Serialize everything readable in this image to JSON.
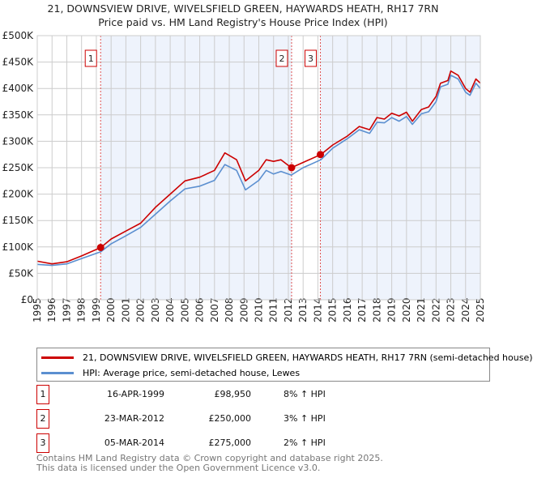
{
  "title": "21, DOWNSVIEW DRIVE, WIVELSFIELD GREEN, HAYWARDS HEATH, RH17 7RN",
  "subtitle": "Price paid vs. HM Land Registry's House Price Index (HPI)",
  "chart_data": {
    "type": "line",
    "xlim": [
      1995,
      2025
    ],
    "ylim": [
      0,
      500000
    ],
    "y_ticks": [
      {
        "v": 0,
        "label": "£0"
      },
      {
        "v": 50000,
        "label": "£50K"
      },
      {
        "v": 100000,
        "label": "£100K"
      },
      {
        "v": 150000,
        "label": "£150K"
      },
      {
        "v": 200000,
        "label": "£200K"
      },
      {
        "v": 250000,
        "label": "£250K"
      },
      {
        "v": 300000,
        "label": "£300K"
      },
      {
        "v": 350000,
        "label": "£350K"
      },
      {
        "v": 400000,
        "label": "£400K"
      },
      {
        "v": 450000,
        "label": "£450K"
      },
      {
        "v": 500000,
        "label": "£500K"
      }
    ],
    "x_ticks": [
      "1995",
      "1996",
      "1997",
      "1998",
      "1999",
      "2000",
      "2001",
      "2002",
      "2003",
      "2004",
      "2005",
      "2006",
      "2007",
      "2008",
      "2009",
      "2010",
      "2011",
      "2012",
      "2013",
      "2014",
      "2015",
      "2016",
      "2017",
      "2018",
      "2019",
      "2020",
      "2021",
      "2022",
      "2023",
      "2024",
      "2025"
    ],
    "grid": true,
    "series": [
      {
        "name": "21, DOWNSVIEW DRIVE, WIVELSFIELD GREEN, HAYWARDS HEATH, RH17 7RN (semi-detached house)",
        "color": "#cc0000",
        "x": [
          1995,
          1996,
          1997,
          1998,
          1999.3,
          2000,
          2001,
          2002,
          2003,
          2004,
          2005,
          2006,
          2007,
          2007.7,
          2008.5,
          2009.1,
          2010,
          2010.5,
          2011,
          2011.5,
          2012.2,
          2013,
          2014.2,
          2015,
          2016,
          2016.8,
          2017.5,
          2018,
          2018.5,
          2019,
          2019.5,
          2020,
          2020.4,
          2021,
          2021.5,
          2022,
          2022.3,
          2022.8,
          2023,
          2023.5,
          2024,
          2024.3,
          2024.7,
          2025
        ],
        "y": [
          73000,
          68000,
          72000,
          83000,
          99000,
          115000,
          130000,
          145000,
          175000,
          200000,
          225000,
          232000,
          245000,
          278000,
          265000,
          225000,
          245000,
          265000,
          262000,
          265000,
          250000,
          260000,
          275000,
          293000,
          310000,
          328000,
          322000,
          345000,
          342000,
          353000,
          348000,
          355000,
          338000,
          360000,
          365000,
          385000,
          410000,
          415000,
          433000,
          425000,
          400000,
          393000,
          418000,
          410000
        ]
      },
      {
        "name": "HPI: Average price, semi-detached house, Lewes",
        "color": "#5b8fd0",
        "x": [
          1995,
          1996,
          1997,
          1998,
          1999.3,
          2000,
          2001,
          2002,
          2003,
          2004,
          2005,
          2006,
          2007,
          2007.7,
          2008.5,
          2009.1,
          2010,
          2010.5,
          2011,
          2011.5,
          2012.2,
          2013,
          2014.2,
          2015,
          2016,
          2016.8,
          2017.5,
          2018,
          2018.5,
          2019,
          2019.5,
          2020,
          2020.4,
          2021,
          2021.5,
          2022,
          2022.3,
          2022.8,
          2023,
          2023.5,
          2024,
          2024.3,
          2024.7,
          2025
        ],
        "y": [
          67000,
          65000,
          68000,
          78000,
          91000,
          106000,
          121000,
          137000,
          162000,
          187000,
          210000,
          215000,
          226000,
          256000,
          245000,
          208000,
          226000,
          245000,
          238000,
          243000,
          236000,
          250000,
          265000,
          287000,
          305000,
          322000,
          315000,
          336000,
          335000,
          345000,
          338000,
          347000,
          332000,
          352000,
          356000,
          375000,
          403000,
          408000,
          425000,
          418000,
          393000,
          387000,
          410000,
          400000
        ]
      }
    ],
    "sales": [
      {
        "label": "1",
        "x": 1999.29,
        "y": 98950
      },
      {
        "label": "2",
        "x": 2012.22,
        "y": 250000
      },
      {
        "label": "3",
        "x": 2014.17,
        "y": 275000
      }
    ],
    "legend_placement": "below"
  },
  "transactions": [
    {
      "num": "1",
      "date": "16-APR-1999",
      "price": "£98,950",
      "hpi": "8% ↑ HPI"
    },
    {
      "num": "2",
      "date": "23-MAR-2012",
      "price": "£250,000",
      "hpi": "3% ↑ HPI"
    },
    {
      "num": "3",
      "date": "05-MAR-2014",
      "price": "£275,000",
      "hpi": "2% ↑ HPI"
    }
  ],
  "footer": [
    "Contains HM Land Registry data © Crown copyright and database right 2025.",
    "This data is licensed under the Open Government Licence v3.0."
  ]
}
